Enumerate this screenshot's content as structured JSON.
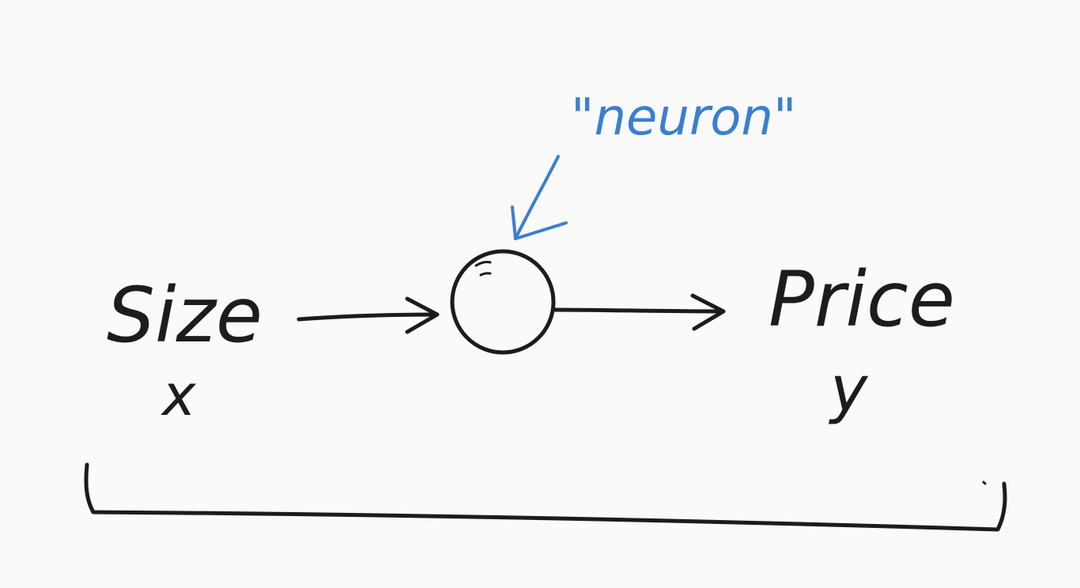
{
  "diagram": {
    "input_label": "Size",
    "input_variable": "x",
    "output_label": "Price",
    "output_variable": "y",
    "neuron_annotation": "\"neuron\"",
    "ink_color": "#1c1c1c",
    "annotation_color": "#3a7fd0",
    "background_color": "#fafafa"
  }
}
